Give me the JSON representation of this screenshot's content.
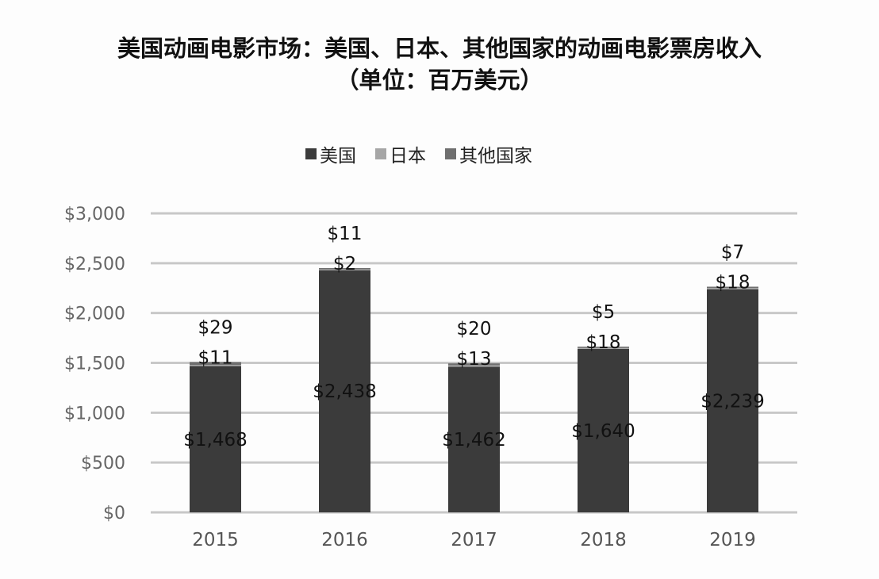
{
  "chart_data": {
    "type": "bar",
    "stacked": true,
    "title": "美国动画电影市场：美国、日本、其他国家的动画电影票房收入",
    "subtitle": "（单位：百万美元）",
    "categories": [
      "2015",
      "2016",
      "2017",
      "2018",
      "2019"
    ],
    "series": [
      {
        "name": "美国",
        "values": [
          1468,
          2438,
          1462,
          1640,
          2239
        ],
        "labels": [
          "$1,468",
          "$2,438",
          "$1,462",
          "$1,640",
          "$2,239"
        ],
        "color": "#3b3b3b"
      },
      {
        "name": "日本",
        "values": [
          11,
          2,
          13,
          18,
          18
        ],
        "labels": [
          "$11",
          "$2",
          "$13",
          "$18",
          "$18"
        ],
        "color": "#a6a6a6"
      },
      {
        "name": "其他国家",
        "values": [
          29,
          11,
          20,
          5,
          7
        ],
        "labels": [
          "$29",
          "$11",
          "$20",
          "$5",
          "$7"
        ],
        "color": "#6f6f6f"
      }
    ],
    "ylim": [
      0,
      3000
    ],
    "yticks": [
      0,
      500,
      1000,
      1500,
      2000,
      2500,
      3000
    ],
    "ytick_labels": [
      "$0",
      "$500",
      "$1,000",
      "$1,500",
      "$2,000",
      "$2,500",
      "$3,000"
    ],
    "xlabel": "",
    "ylabel": "",
    "grid": true,
    "legend_position": "top"
  }
}
